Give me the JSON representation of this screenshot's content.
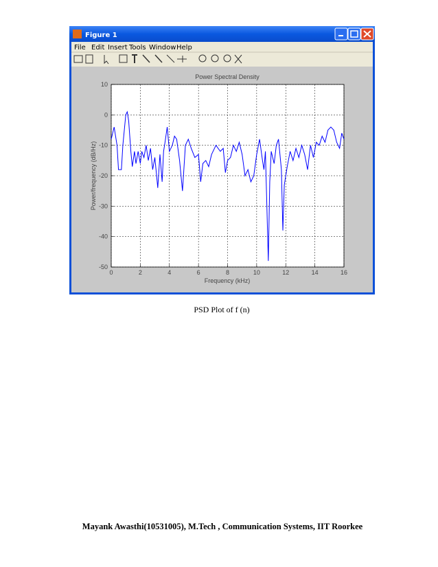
{
  "window": {
    "title": "Figure 1",
    "menu": [
      "File",
      "Edit",
      "Insert",
      "Tools",
      "Window",
      "Help"
    ]
  },
  "chart_data": {
    "type": "line",
    "title": "Power Spectral Density",
    "xlabel": "Frequency (kHz)",
    "ylabel": "Power/frequency (dB/Hz)",
    "color": "#0000ff",
    "grid": true,
    "xlim": [
      0,
      16
    ],
    "xticks": [
      0,
      2,
      4,
      6,
      8,
      10,
      12,
      14,
      16
    ],
    "ylim": [
      -50,
      10
    ],
    "yticks": [
      10,
      0,
      -10,
      -20,
      -30,
      -40,
      -50
    ],
    "x": [
      0,
      0.2,
      0.4,
      0.5,
      0.7,
      0.8,
      1.0,
      1.1,
      1.2,
      1.35,
      1.45,
      1.6,
      1.7,
      1.85,
      2.0,
      2.1,
      2.25,
      2.4,
      2.55,
      2.7,
      2.85,
      3.0,
      3.2,
      3.35,
      3.5,
      3.6,
      3.7,
      3.85,
      4.0,
      4.2,
      4.35,
      4.5,
      4.7,
      4.9,
      5.1,
      5.3,
      5.5,
      5.75,
      6.0,
      6.15,
      6.3,
      6.5,
      6.7,
      6.9,
      7.2,
      7.5,
      7.7,
      7.85,
      8.0,
      8.2,
      8.4,
      8.6,
      8.8,
      9.0,
      9.2,
      9.4,
      9.6,
      9.8,
      10.0,
      10.2,
      10.4,
      10.5,
      10.6,
      10.8,
      10.9,
      11.0,
      11.2,
      11.35,
      11.5,
      11.7,
      11.8,
      11.9,
      12.1,
      12.3,
      12.5,
      12.7,
      12.9,
      13.1,
      13.3,
      13.5,
      13.7,
      13.9,
      14.1,
      14.3,
      14.5,
      14.7,
      14.9,
      15.1,
      15.3,
      15.5,
      15.7,
      15.85,
      16.0
    ],
    "values": [
      -8,
      -4,
      -10,
      -18,
      -18,
      -10,
      0,
      1,
      -2,
      -12,
      -17,
      -12,
      -16,
      -12,
      -16,
      -12,
      -14,
      -10,
      -15,
      -11,
      -18,
      -14,
      -24,
      -13,
      -22,
      -12,
      -9,
      -4,
      -12,
      -10,
      -7,
      -8,
      -15,
      -25,
      -10,
      -8,
      -11,
      -14,
      -13,
      -22,
      -16,
      -15,
      -17,
      -13,
      -10,
      -12,
      -11,
      -19,
      -15,
      -14,
      -10,
      -12,
      -9,
      -13,
      -20,
      -18,
      -22,
      -20,
      -13,
      -8,
      -15,
      -18,
      -12,
      -48,
      -22,
      -12,
      -16,
      -10,
      -8,
      -18,
      -38,
      -23,
      -17,
      -12,
      -15,
      -11,
      -14,
      -10,
      -13,
      -18,
      -10,
      -14,
      -9,
      -10,
      -7,
      -9,
      -5,
      -4,
      -5,
      -9,
      -11,
      -6,
      -8
    ]
  },
  "caption": "PSD Plot of f (n)",
  "footer": "Mayank Awasthi(10531005), M.Tech , Communication Systems, IIT Roorkee"
}
